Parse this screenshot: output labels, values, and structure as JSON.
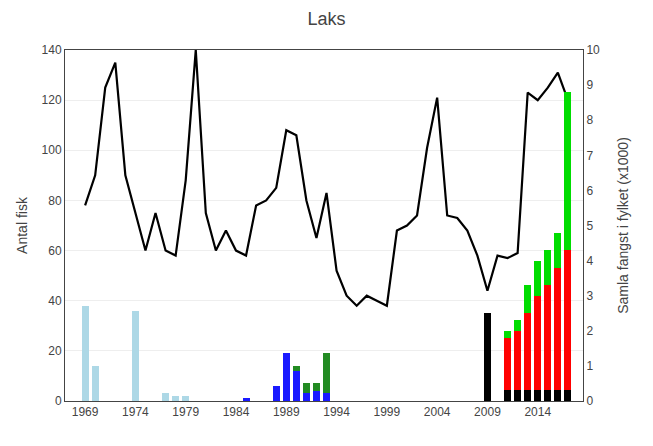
{
  "chart_data": {
    "type": "bar",
    "title": "Laks",
    "y_label": "Antal fisk",
    "y2_label": "Samla fangst i fylket (x1000)",
    "xlim": [
      1967.0,
      2018.5
    ],
    "xticks": [
      1969,
      1974,
      1979,
      1984,
      1989,
      1994,
      1999,
      2004,
      2009,
      2014
    ],
    "ylim": [
      0,
      140
    ],
    "yticks": [
      0,
      20,
      40,
      60,
      80,
      100,
      120,
      140
    ],
    "y2lim": [
      0,
      10
    ],
    "y2ticks": [
      0,
      1,
      2,
      3,
      4,
      5,
      6,
      7,
      8,
      9,
      10
    ],
    "grid": true,
    "stacked": true,
    "series": [
      {
        "type": "bar",
        "color": "#add8e6",
        "x": [
          1969,
          1970,
          1974,
          1977,
          1978,
          1979
        ],
        "values": [
          38,
          14,
          36,
          3,
          2,
          2
        ]
      },
      {
        "type": "bar",
        "color": "#1a1aff",
        "x": [
          1985,
          1988,
          1989,
          1990,
          1991,
          1992,
          1993
        ],
        "values": [
          1,
          6,
          19,
          12,
          3,
          4,
          3
        ]
      },
      {
        "type": "bar",
        "color": "#228B22",
        "x": [
          1985,
          1988,
          1989,
          1990,
          1991,
          1992,
          1993
        ],
        "values": [
          0,
          0,
          0,
          2,
          4,
          3,
          16
        ]
      },
      {
        "type": "bar",
        "axis": "y2",
        "color": "#000000",
        "x": [
          2009,
          2011,
          2012,
          2013,
          2014,
          2015,
          2016,
          2017
        ],
        "values": [
          2.5,
          0.3,
          0.3,
          0.3,
          0.3,
          0.3,
          0.3,
          0.3
        ]
      },
      {
        "type": "bar",
        "axis": "y2",
        "color": "#ff0000",
        "x": [
          2009,
          2011,
          2012,
          2013,
          2014,
          2015,
          2016,
          2017
        ],
        "values": [
          0.0,
          1.5,
          1.7,
          2.2,
          2.7,
          3.0,
          3.5,
          4.0
        ]
      },
      {
        "type": "bar",
        "axis": "y2",
        "color": "#00dd00",
        "x": [
          2009,
          2011,
          2012,
          2013,
          2014,
          2015,
          2016,
          2017
        ],
        "values": [
          0.0,
          0.2,
          0.3,
          0.8,
          1.0,
          1.0,
          1.0,
          4.5
        ]
      },
      {
        "type": "line",
        "color": "black",
        "x": [
          1969,
          1970,
          1971,
          1972,
          1973,
          1974,
          1975,
          1976,
          1977,
          1978,
          1979,
          1980,
          1981,
          1982,
          1983,
          1984,
          1985,
          1986,
          1987,
          1988,
          1989,
          1990,
          1991,
          1992,
          1993,
          1994,
          1995,
          1996,
          1997,
          1998,
          1999,
          2000,
          2001,
          2002,
          2003,
          2004,
          2005,
          2006,
          2007,
          2008,
          2009,
          2010,
          2011,
          2012,
          2013,
          2014,
          2015,
          2016,
          2017
        ],
        "values": [
          78,
          90,
          125,
          135,
          90,
          75,
          60,
          75,
          60,
          58,
          88,
          140,
          75,
          60,
          68,
          60,
          58,
          78,
          80,
          85,
          108,
          106,
          80,
          65,
          83,
          52,
          42,
          38,
          42,
          40,
          38,
          68,
          70,
          74,
          101,
          121,
          74,
          73,
          68,
          58,
          44,
          58,
          57,
          59,
          123,
          120,
          125,
          131,
          120
        ]
      }
    ]
  }
}
